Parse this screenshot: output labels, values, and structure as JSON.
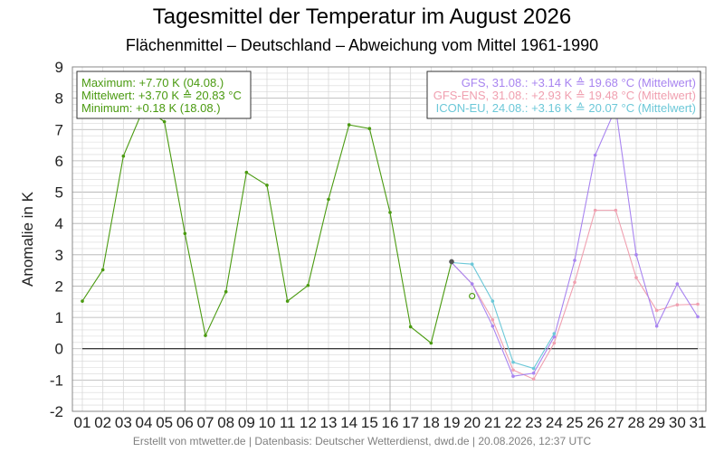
{
  "title": "Tagesmittel der Temperatur im August 2026",
  "subtitle": "Flächenmittel – Deutschland – Abweichung vom Mittel 1961-1990",
  "footer": "Erstellt von mtwetter.de | Datenbasis: Deutscher Wetterdienst, dwd.de | 20.08.2026, 12:37 UTC",
  "colors": {
    "observed": "#4a9a10",
    "gfs": "#a884f0",
    "gfs_ens": "#f0a0b0",
    "icon_eu": "#6cc8d8",
    "grid": "#d8d8d8",
    "grid_major": "#b0b0b0",
    "zero_line": "#000000"
  },
  "stats_box": {
    "lines": [
      "Maximum: +7.70 K  (04.08.)",
      "Mittelwert: +3.70 K  ≙ 20.83 °C",
      "Minimum:  +0.18 K  (18.08.)"
    ]
  },
  "model_box": {
    "lines": [
      {
        "text": "GFS, 31.08.: +3.14 K  ≙ 19.68 °C (Mittelwert)",
        "series": "gfs"
      },
      {
        "text": "GFS-ENS, 31.08.: +2.93 K  ≙ 19.48 °C (Mittelwert)",
        "series": "gfs_ens"
      },
      {
        "text": "ICON-EU, 24.08.: +3.16 K  ≙ 20.07 °C (Mittelwert)",
        "series": "icon_eu"
      }
    ]
  },
  "chart_data": {
    "type": "line",
    "title": "Tagesmittel der Temperatur im August 2026",
    "subtitle": "Flächenmittel – Deutschland – Abweichung vom Mittel 1961-1990",
    "xlabel": "",
    "ylabel": "Anomalie in K",
    "ylim": [
      -2,
      9
    ],
    "yticks": [
      "-2",
      "-1",
      "0",
      "1",
      "2",
      "3",
      "4",
      "5",
      "6",
      "7",
      "8",
      "9"
    ],
    "categories": [
      "01",
      "02",
      "03",
      "04",
      "05",
      "06",
      "07",
      "08",
      "09",
      "10",
      "11",
      "12",
      "13",
      "14",
      "15",
      "16",
      "17",
      "18",
      "19",
      "20",
      "21",
      "22",
      "23",
      "24",
      "25",
      "26",
      "27",
      "28",
      "29",
      "30",
      "31"
    ],
    "grid": true,
    "legend": "top-right",
    "series": [
      {
        "key": "observed",
        "x": [
          1,
          2,
          3,
          4,
          5,
          6,
          7,
          8,
          9,
          10,
          11,
          12,
          13,
          14,
          15,
          16,
          17,
          18,
          19
        ],
        "values": [
          1.52,
          2.52,
          6.15,
          7.7,
          7.25,
          3.68,
          0.42,
          1.82,
          5.63,
          5.22,
          1.52,
          2.02,
          4.77,
          7.15,
          7.03,
          4.35,
          0.7,
          0.18,
          2.78
        ]
      },
      {
        "key": "gfs",
        "name": "GFS",
        "x": [
          19,
          20,
          21,
          22,
          23,
          24,
          25,
          26,
          27,
          28,
          29,
          30,
          31
        ],
        "values": [
          2.75,
          2.07,
          0.72,
          -0.88,
          -0.78,
          0.38,
          2.82,
          6.18,
          7.68,
          3.0,
          0.72,
          2.07,
          1.02
        ]
      },
      {
        "key": "gfs_ens",
        "name": "GFS-ENS",
        "x": [
          19,
          20,
          21,
          22,
          23,
          24,
          25,
          26,
          27,
          28,
          29,
          30,
          31
        ],
        "values": [
          2.75,
          2.07,
          0.92,
          -0.68,
          -0.97,
          0.18,
          2.12,
          4.42,
          4.42,
          2.27,
          1.22,
          1.4,
          1.42
        ]
      },
      {
        "key": "icon_eu",
        "name": "ICON-EU",
        "x": [
          19,
          20,
          21,
          22,
          23,
          24
        ],
        "values": [
          2.75,
          2.7,
          1.52,
          -0.43,
          -0.63,
          0.48
        ]
      }
    ],
    "marker_current": {
      "x": 19,
      "y": 2.78
    },
    "marker_open": {
      "x": 20,
      "y": 1.68
    }
  }
}
